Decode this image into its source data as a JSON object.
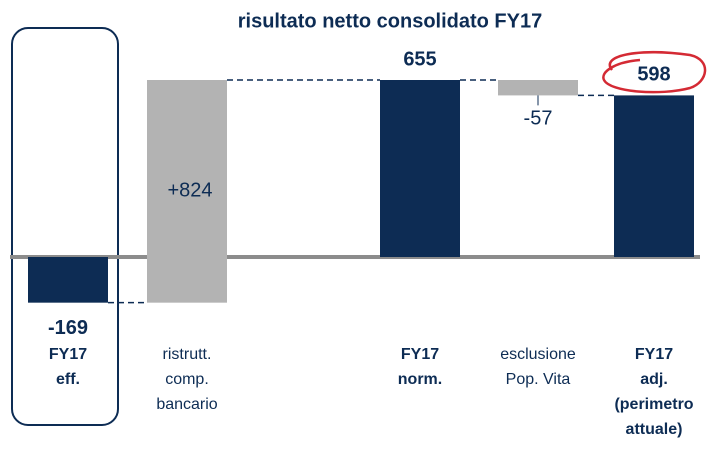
{
  "chart_data": {
    "type": "waterfall",
    "title": "risultato netto consolidato FY17",
    "categories": [
      [
        "FY17",
        "eff."
      ],
      [
        "ristrutt.",
        "comp.",
        "bancario"
      ],
      [
        "FY17",
        "norm."
      ],
      [
        "esclusione",
        "Pop. Vita"
      ],
      [
        "FY17",
        "adj.",
        "(perimetro",
        "attuale)"
      ]
    ],
    "values": [
      -169,
      824,
      655,
      -57,
      598
    ],
    "value_labels": [
      "-169",
      "+824",
      "655",
      "-57",
      "598"
    ],
    "measure": [
      "absolute",
      "relative",
      "total",
      "relative",
      "total"
    ],
    "total_color": "#0d2c54",
    "relative_color": "#b3b3b3"
  }
}
